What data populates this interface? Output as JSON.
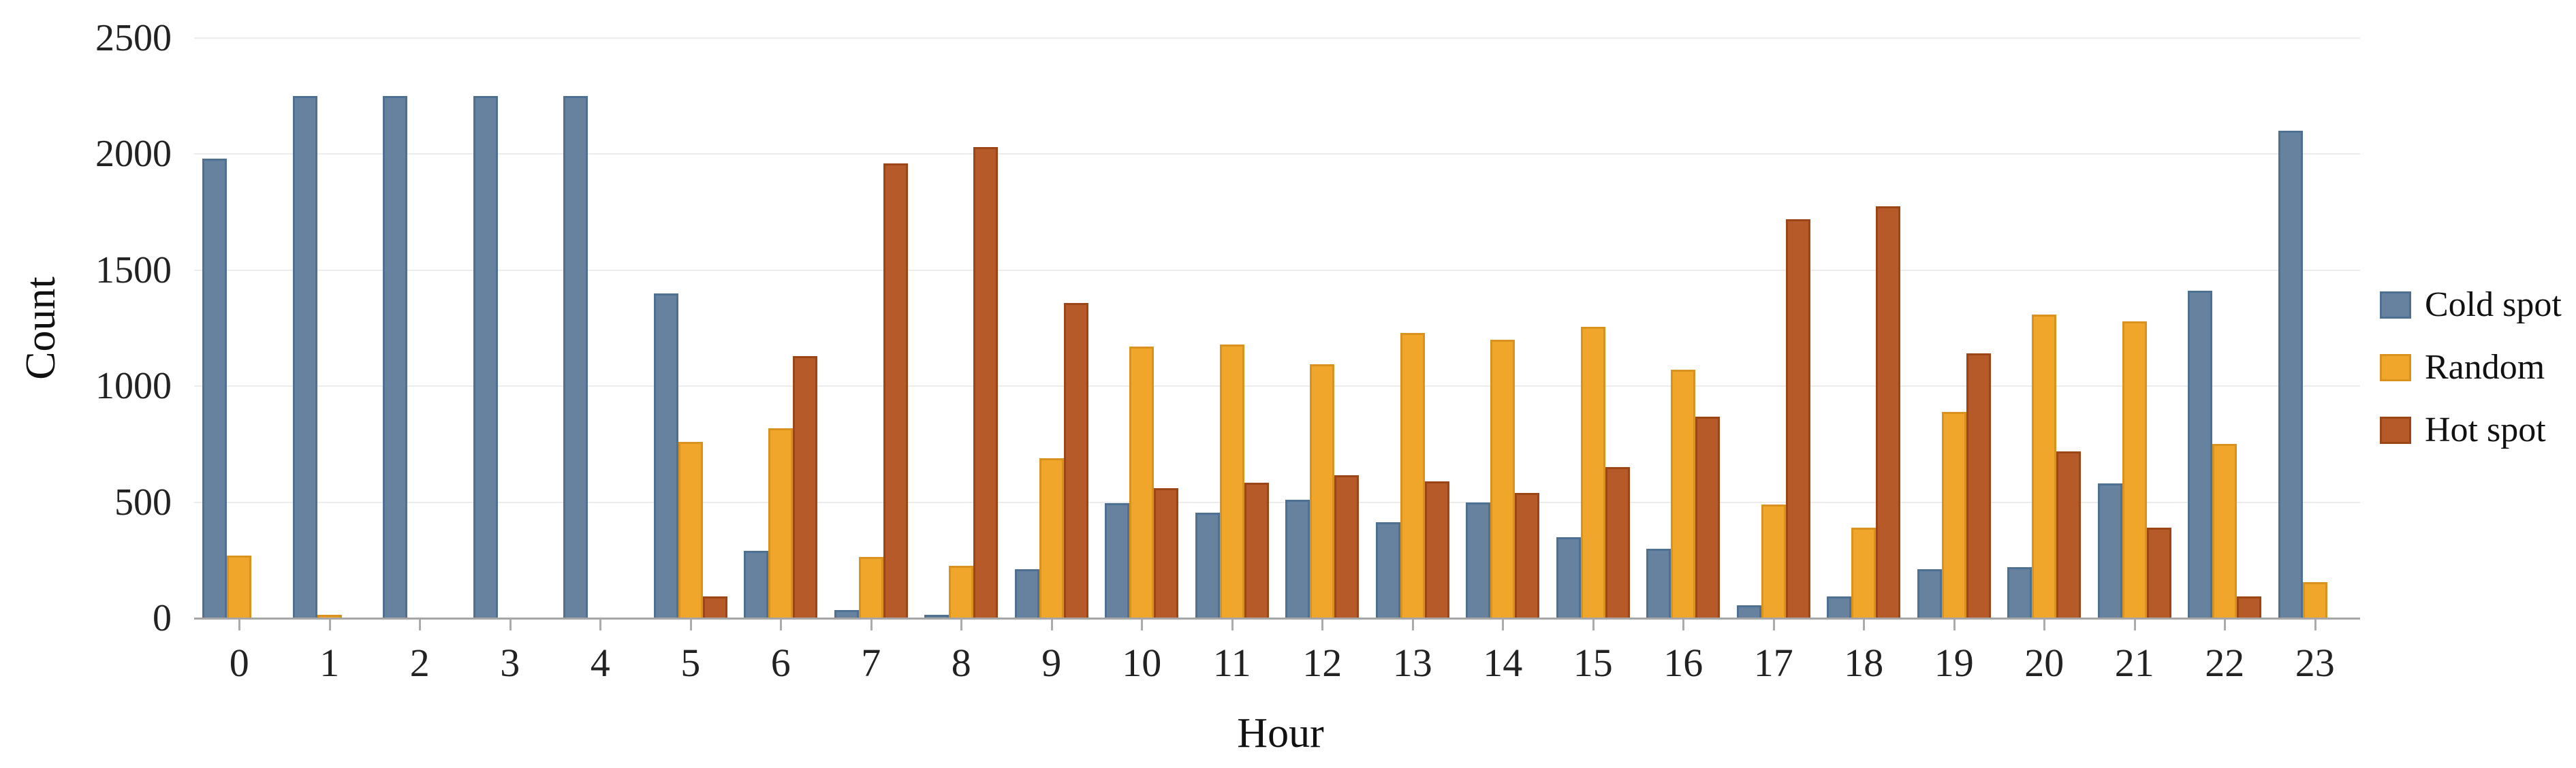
{
  "chart_data": {
    "type": "bar",
    "title": "",
    "xlabel": "Hour",
    "ylabel": "Count",
    "categories": [
      "0",
      "1",
      "2",
      "3",
      "4",
      "5",
      "6",
      "7",
      "8",
      "9",
      "10",
      "11",
      "12",
      "13",
      "14",
      "15",
      "16",
      "17",
      "18",
      "19",
      "20",
      "21",
      "22",
      "23"
    ],
    "series": [
      {
        "name": "Cold spot",
        "color": "#66829f",
        "border_color": "#4d7093",
        "values": [
          1980,
          2250,
          2250,
          2250,
          2250,
          1400,
          290,
          35,
          15,
          210,
          495,
          455,
          510,
          415,
          500,
          350,
          300,
          55,
          95,
          210,
          220,
          580,
          1410,
          2100
        ]
      },
      {
        "name": "Random",
        "color": "#f0a62b",
        "border_color": "#d9921e",
        "values": [
          270,
          15,
          0,
          0,
          0,
          760,
          820,
          265,
          225,
          690,
          1170,
          1180,
          1095,
          1230,
          1200,
          1255,
          1070,
          490,
          390,
          890,
          1310,
          1280,
          750,
          155
        ]
      },
      {
        "name": "Hot spot",
        "color": "#b55a28",
        "border_color": "#9c4517",
        "values": [
          0,
          0,
          0,
          0,
          0,
          95,
          1130,
          1960,
          2030,
          1360,
          560,
          585,
          615,
          590,
          540,
          650,
          870,
          1720,
          1775,
          1140,
          720,
          390,
          95,
          0
        ]
      }
    ],
    "ylim": [
      0,
      2500
    ],
    "yticks": [
      0,
      500,
      1000,
      1500,
      2000,
      2500
    ],
    "grid": "horizontal",
    "legend_position": "right",
    "colors": {
      "gridline": "#ececec",
      "axis": "#a6a6a6",
      "tick": "#ababab",
      "text": "#1e1e1e",
      "background": "#ffffff"
    }
  }
}
